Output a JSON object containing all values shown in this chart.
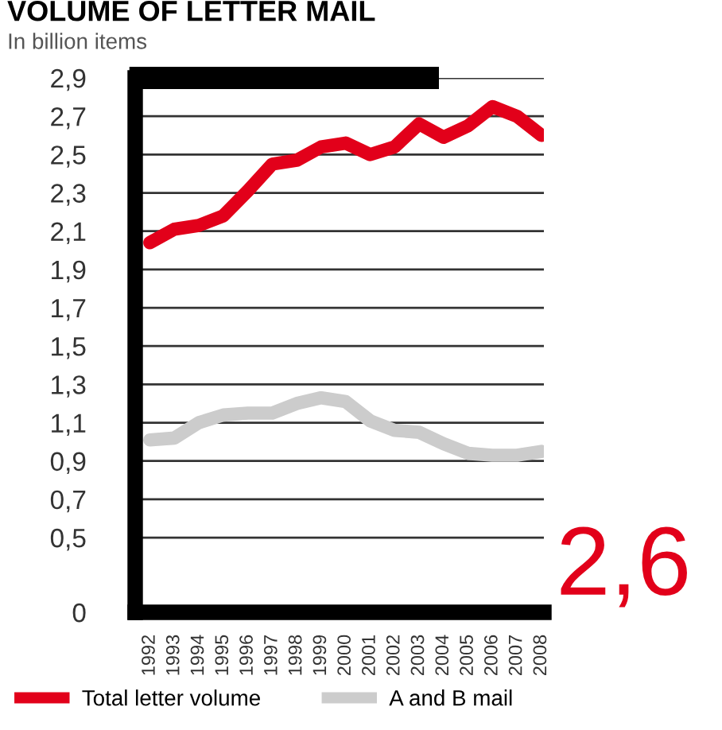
{
  "chart_data": {
    "type": "line",
    "title": "VOLUME OF LETTER MAIL",
    "subtitle": "In billion items",
    "categories": [
      "1992",
      "1993",
      "1994",
      "1995",
      "1996",
      "1997",
      "1998",
      "1999",
      "2000",
      "2001",
      "2002",
      "2003",
      "2004",
      "2005",
      "2006",
      "2007",
      "2008"
    ],
    "series": [
      {
        "name": "Total letter volume",
        "color": "#e2001a",
        "values": [
          2.04,
          2.11,
          2.13,
          2.18,
          2.31,
          2.45,
          2.47,
          2.54,
          2.56,
          2.5,
          2.54,
          2.66,
          2.59,
          2.65,
          2.75,
          2.7,
          2.6
        ]
      },
      {
        "name": "A and B mail",
        "color": "#cccccc",
        "values": [
          1.01,
          1.02,
          1.1,
          1.14,
          1.15,
          1.15,
          1.2,
          1.23,
          1.21,
          1.11,
          1.06,
          1.05,
          0.99,
          0.94,
          0.93,
          0.93,
          0.95
        ]
      }
    ],
    "ylim": [
      0.11,
      2.9
    ],
    "yticks": [
      {
        "value": 0.11,
        "label": "0"
      },
      {
        "value": 0.5,
        "label": "0,5"
      },
      {
        "value": 0.7,
        "label": "0,7"
      },
      {
        "value": 0.9,
        "label": "0,9"
      },
      {
        "value": 1.1,
        "label": "1,1"
      },
      {
        "value": 1.3,
        "label": "1,3"
      },
      {
        "value": 1.5,
        "label": "1,5"
      },
      {
        "value": 1.7,
        "label": "1,7"
      },
      {
        "value": 1.9,
        "label": "1,9"
      },
      {
        "value": 2.1,
        "label": "2,1"
      },
      {
        "value": 2.3,
        "label": "2,3"
      },
      {
        "value": 2.5,
        "label": "2,5"
      },
      {
        "value": 2.7,
        "label": "2,7"
      },
      {
        "value": 2.9,
        "label": "2,9"
      }
    ],
    "grid": "y",
    "legend": "bottom",
    "line_style": "solid",
    "marker": "none",
    "annotations": [
      "2,6"
    ]
  }
}
